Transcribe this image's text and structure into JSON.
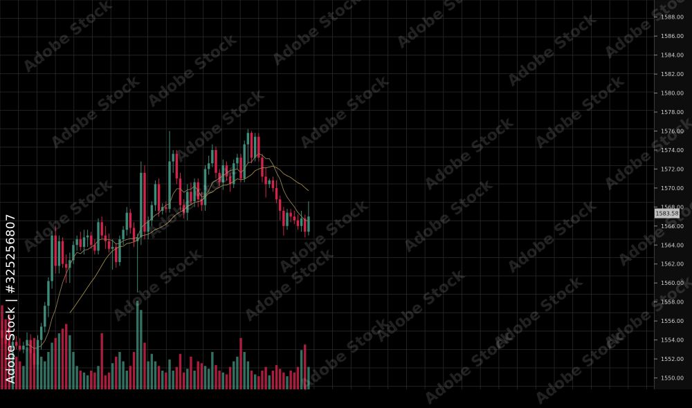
{
  "side_label": "Adobe Stock | #325256807",
  "watermark_text": "Adobe Stock",
  "price_tag": "1583.58",
  "colors": {
    "background": "#000000",
    "grid": "#2a2a2a",
    "up": "#3e8d7a",
    "down": "#d1244a",
    "ma_slow": "#a08a4a",
    "ma_fast": "#8f7f56",
    "axis_panel": "#0d0d0d",
    "price_tag_bg": "#bfbfbf"
  },
  "chart_data": {
    "type": "candlestick",
    "y_axis": {
      "ticks": [
        "1588.00",
        "1586.00",
        "1584.00",
        "1582.00",
        "1580.00",
        "1578.00",
        "1576.00",
        "1574.00",
        "1572.00",
        "1570.00",
        "1568.00",
        "1566.00",
        "1564.00",
        "1562.00",
        "1560.00",
        "1558.00",
        "1556.00",
        "1554.00",
        "1552.00",
        "1550.00"
      ],
      "ylim": [
        1548.8,
        1589.8
      ],
      "position": "right"
    },
    "grid": true,
    "candles": [
      {
        "o": 1555.0,
        "h": 1556.0,
        "l": 1553.5,
        "c": 1554.2,
        "v": 0.9
      },
      {
        "o": 1554.2,
        "h": 1555.0,
        "l": 1553.0,
        "c": 1553.6,
        "v": 0.75
      },
      {
        "o": 1553.6,
        "h": 1555.5,
        "l": 1552.5,
        "c": 1553.2,
        "v": 0.8
      },
      {
        "o": 1553.2,
        "h": 1554.6,
        "l": 1552.8,
        "c": 1553.8,
        "v": 0.4
      },
      {
        "o": 1553.8,
        "h": 1554.4,
        "l": 1553.0,
        "c": 1553.4,
        "v": 0.35
      },
      {
        "o": 1553.4,
        "h": 1554.2,
        "l": 1552.8,
        "c": 1553.0,
        "v": 0.3
      },
      {
        "o": 1553.0,
        "h": 1553.8,
        "l": 1552.6,
        "c": 1553.4,
        "v": 0.25
      },
      {
        "o": 1553.4,
        "h": 1554.8,
        "l": 1552.8,
        "c": 1554.0,
        "v": 0.45
      },
      {
        "o": 1554.0,
        "h": 1554.6,
        "l": 1552.0,
        "c": 1552.6,
        "v": 0.5
      },
      {
        "o": 1552.6,
        "h": 1553.2,
        "l": 1551.0,
        "c": 1551.4,
        "v": 0.55
      },
      {
        "o": 1551.4,
        "h": 1554.5,
        "l": 1550.8,
        "c": 1554.0,
        "v": 0.3
      },
      {
        "o": 1554.0,
        "h": 1555.8,
        "l": 1553.0,
        "c": 1555.4,
        "v": 0.35
      },
      {
        "o": 1555.4,
        "h": 1558.0,
        "l": 1554.8,
        "c": 1557.6,
        "v": 0.3
      },
      {
        "o": 1557.6,
        "h": 1560.6,
        "l": 1556.4,
        "c": 1560.2,
        "v": 0.4
      },
      {
        "o": 1560.2,
        "h": 1565.5,
        "l": 1559.4,
        "c": 1565.0,
        "v": 0.5
      },
      {
        "o": 1565.0,
        "h": 1566.0,
        "l": 1561.0,
        "c": 1561.8,
        "v": 0.55
      },
      {
        "o": 1561.8,
        "h": 1565.0,
        "l": 1561.0,
        "c": 1564.4,
        "v": 0.6
      },
      {
        "o": 1564.4,
        "h": 1564.8,
        "l": 1561.6,
        "c": 1562.0,
        "v": 0.65
      },
      {
        "o": 1562.0,
        "h": 1563.0,
        "l": 1560.0,
        "c": 1561.6,
        "v": 0.7
      },
      {
        "o": 1561.6,
        "h": 1563.2,
        "l": 1560.0,
        "c": 1562.4,
        "v": 0.58
      },
      {
        "o": 1562.4,
        "h": 1564.4,
        "l": 1562.0,
        "c": 1564.0,
        "v": 0.4
      },
      {
        "o": 1564.0,
        "h": 1565.0,
        "l": 1563.4,
        "c": 1564.6,
        "v": 0.25
      },
      {
        "o": 1564.6,
        "h": 1565.4,
        "l": 1563.4,
        "c": 1563.8,
        "v": 0.2
      },
      {
        "o": 1563.8,
        "h": 1565.6,
        "l": 1563.0,
        "c": 1564.8,
        "v": 0.18
      },
      {
        "o": 1564.8,
        "h": 1565.6,
        "l": 1563.8,
        "c": 1565.0,
        "v": 0.15
      },
      {
        "o": 1565.0,
        "h": 1565.4,
        "l": 1563.6,
        "c": 1564.0,
        "v": 0.2
      },
      {
        "o": 1564.0,
        "h": 1564.6,
        "l": 1563.0,
        "c": 1563.4,
        "v": 0.18
      },
      {
        "o": 1563.4,
        "h": 1566.8,
        "l": 1563.0,
        "c": 1566.4,
        "v": 0.25
      },
      {
        "o": 1566.4,
        "h": 1567.0,
        "l": 1564.6,
        "c": 1565.0,
        "v": 0.6
      },
      {
        "o": 1565.0,
        "h": 1566.0,
        "l": 1563.6,
        "c": 1564.4,
        "v": 0.15
      },
      {
        "o": 1564.4,
        "h": 1565.2,
        "l": 1563.2,
        "c": 1563.6,
        "v": 0.18
      },
      {
        "o": 1563.6,
        "h": 1564.6,
        "l": 1561.4,
        "c": 1563.8,
        "v": 0.28
      },
      {
        "o": 1563.8,
        "h": 1564.2,
        "l": 1561.6,
        "c": 1562.2,
        "v": 0.35
      },
      {
        "o": 1562.2,
        "h": 1565.0,
        "l": 1561.8,
        "c": 1564.6,
        "v": 0.4
      },
      {
        "o": 1564.6,
        "h": 1566.0,
        "l": 1564.0,
        "c": 1565.6,
        "v": 0.3
      },
      {
        "o": 1565.6,
        "h": 1568.0,
        "l": 1565.0,
        "c": 1567.4,
        "v": 0.2
      },
      {
        "o": 1567.4,
        "h": 1567.8,
        "l": 1565.2,
        "c": 1565.8,
        "v": 0.25
      },
      {
        "o": 1565.8,
        "h": 1566.4,
        "l": 1563.8,
        "c": 1564.4,
        "v": 0.4
      },
      {
        "o": 1564.4,
        "h": 1565.2,
        "l": 1559.0,
        "c": 1564.8,
        "v": 0.95
      },
      {
        "o": 1564.8,
        "h": 1572.8,
        "l": 1564.0,
        "c": 1571.6,
        "v": 0.85
      },
      {
        "o": 1571.6,
        "h": 1572.4,
        "l": 1564.6,
        "c": 1565.4,
        "v": 0.5
      },
      {
        "o": 1565.4,
        "h": 1567.0,
        "l": 1564.6,
        "c": 1566.6,
        "v": 0.3
      },
      {
        "o": 1566.6,
        "h": 1568.6,
        "l": 1566.0,
        "c": 1568.2,
        "v": 0.38
      },
      {
        "o": 1568.2,
        "h": 1570.8,
        "l": 1567.6,
        "c": 1570.4,
        "v": 0.3
      },
      {
        "o": 1570.4,
        "h": 1571.0,
        "l": 1567.0,
        "c": 1567.6,
        "v": 0.25
      },
      {
        "o": 1567.6,
        "h": 1568.4,
        "l": 1567.2,
        "c": 1568.0,
        "v": 0.2
      },
      {
        "o": 1568.0,
        "h": 1568.6,
        "l": 1567.4,
        "c": 1567.8,
        "v": 0.18
      },
      {
        "o": 1567.8,
        "h": 1576.0,
        "l": 1567.4,
        "c": 1572.8,
        "v": 0.32
      },
      {
        "o": 1572.8,
        "h": 1574.0,
        "l": 1571.6,
        "c": 1573.6,
        "v": 0.2
      },
      {
        "o": 1573.6,
        "h": 1574.0,
        "l": 1570.4,
        "c": 1571.0,
        "v": 0.24
      },
      {
        "o": 1571.0,
        "h": 1571.6,
        "l": 1567.6,
        "c": 1568.2,
        "v": 0.38
      },
      {
        "o": 1568.2,
        "h": 1568.8,
        "l": 1566.8,
        "c": 1567.4,
        "v": 0.18
      },
      {
        "o": 1567.4,
        "h": 1570.4,
        "l": 1566.6,
        "c": 1569.6,
        "v": 0.22
      },
      {
        "o": 1569.6,
        "h": 1570.6,
        "l": 1568.2,
        "c": 1568.6,
        "v": 0.35
      },
      {
        "o": 1568.6,
        "h": 1571.0,
        "l": 1568.0,
        "c": 1570.6,
        "v": 0.2
      },
      {
        "o": 1570.6,
        "h": 1571.0,
        "l": 1568.0,
        "c": 1568.8,
        "v": 0.3
      },
      {
        "o": 1568.8,
        "h": 1569.6,
        "l": 1567.6,
        "c": 1568.2,
        "v": 0.28
      },
      {
        "o": 1568.2,
        "h": 1572.4,
        "l": 1567.6,
        "c": 1572.0,
        "v": 0.25
      },
      {
        "o": 1572.0,
        "h": 1573.4,
        "l": 1571.4,
        "c": 1572.6,
        "v": 0.22
      },
      {
        "o": 1572.6,
        "h": 1574.6,
        "l": 1572.2,
        "c": 1574.0,
        "v": 0.4
      },
      {
        "o": 1574.0,
        "h": 1574.4,
        "l": 1571.0,
        "c": 1571.6,
        "v": 0.26
      },
      {
        "o": 1571.6,
        "h": 1572.0,
        "l": 1570.2,
        "c": 1570.6,
        "v": 0.2
      },
      {
        "o": 1570.6,
        "h": 1573.0,
        "l": 1569.8,
        "c": 1572.4,
        "v": 0.18
      },
      {
        "o": 1572.4,
        "h": 1572.8,
        "l": 1570.8,
        "c": 1571.2,
        "v": 0.16
      },
      {
        "o": 1571.2,
        "h": 1571.6,
        "l": 1569.6,
        "c": 1570.4,
        "v": 0.24
      },
      {
        "o": 1570.4,
        "h": 1573.0,
        "l": 1570.0,
        "c": 1572.6,
        "v": 0.3
      },
      {
        "o": 1572.6,
        "h": 1573.6,
        "l": 1572.0,
        "c": 1573.2,
        "v": 0.35
      },
      {
        "o": 1573.2,
        "h": 1573.6,
        "l": 1570.6,
        "c": 1571.0,
        "v": 0.55
      },
      {
        "o": 1571.0,
        "h": 1575.0,
        "l": 1570.6,
        "c": 1574.6,
        "v": 0.4
      },
      {
        "o": 1574.6,
        "h": 1576.2,
        "l": 1572.6,
        "c": 1575.8,
        "v": 0.3
      },
      {
        "o": 1575.8,
        "h": 1576.0,
        "l": 1572.6,
        "c": 1573.2,
        "v": 0.2
      },
      {
        "o": 1573.2,
        "h": 1575.8,
        "l": 1572.8,
        "c": 1575.4,
        "v": 0.16
      },
      {
        "o": 1575.4,
        "h": 1575.8,
        "l": 1572.8,
        "c": 1573.2,
        "v": 0.14
      },
      {
        "o": 1573.2,
        "h": 1573.6,
        "l": 1570.6,
        "c": 1571.2,
        "v": 0.2
      },
      {
        "o": 1571.2,
        "h": 1572.2,
        "l": 1569.0,
        "c": 1570.4,
        "v": 0.24
      },
      {
        "o": 1570.4,
        "h": 1571.0,
        "l": 1570.0,
        "c": 1570.8,
        "v": 0.15
      },
      {
        "o": 1570.8,
        "h": 1571.2,
        "l": 1569.6,
        "c": 1570.0,
        "v": 0.2
      },
      {
        "o": 1570.0,
        "h": 1570.8,
        "l": 1568.4,
        "c": 1568.8,
        "v": 0.26
      },
      {
        "o": 1568.8,
        "h": 1569.2,
        "l": 1566.6,
        "c": 1567.6,
        "v": 0.22
      },
      {
        "o": 1567.6,
        "h": 1568.0,
        "l": 1565.0,
        "c": 1566.0,
        "v": 0.18
      },
      {
        "o": 1566.0,
        "h": 1567.8,
        "l": 1565.6,
        "c": 1567.4,
        "v": 0.14
      },
      {
        "o": 1567.4,
        "h": 1567.8,
        "l": 1566.4,
        "c": 1567.0,
        "v": 0.2
      },
      {
        "o": 1567.0,
        "h": 1567.6,
        "l": 1566.2,
        "c": 1566.6,
        "v": 0.18
      },
      {
        "o": 1566.6,
        "h": 1567.2,
        "l": 1565.6,
        "c": 1566.0,
        "v": 0.24
      },
      {
        "o": 1566.0,
        "h": 1567.6,
        "l": 1565.4,
        "c": 1566.8,
        "v": 0.42
      },
      {
        "o": 1566.8,
        "h": 1567.2,
        "l": 1564.8,
        "c": 1565.4,
        "v": 0.48
      },
      {
        "o": 1565.4,
        "h": 1568.6,
        "l": 1565.0,
        "c": 1567.0,
        "v": 0.24
      }
    ]
  }
}
